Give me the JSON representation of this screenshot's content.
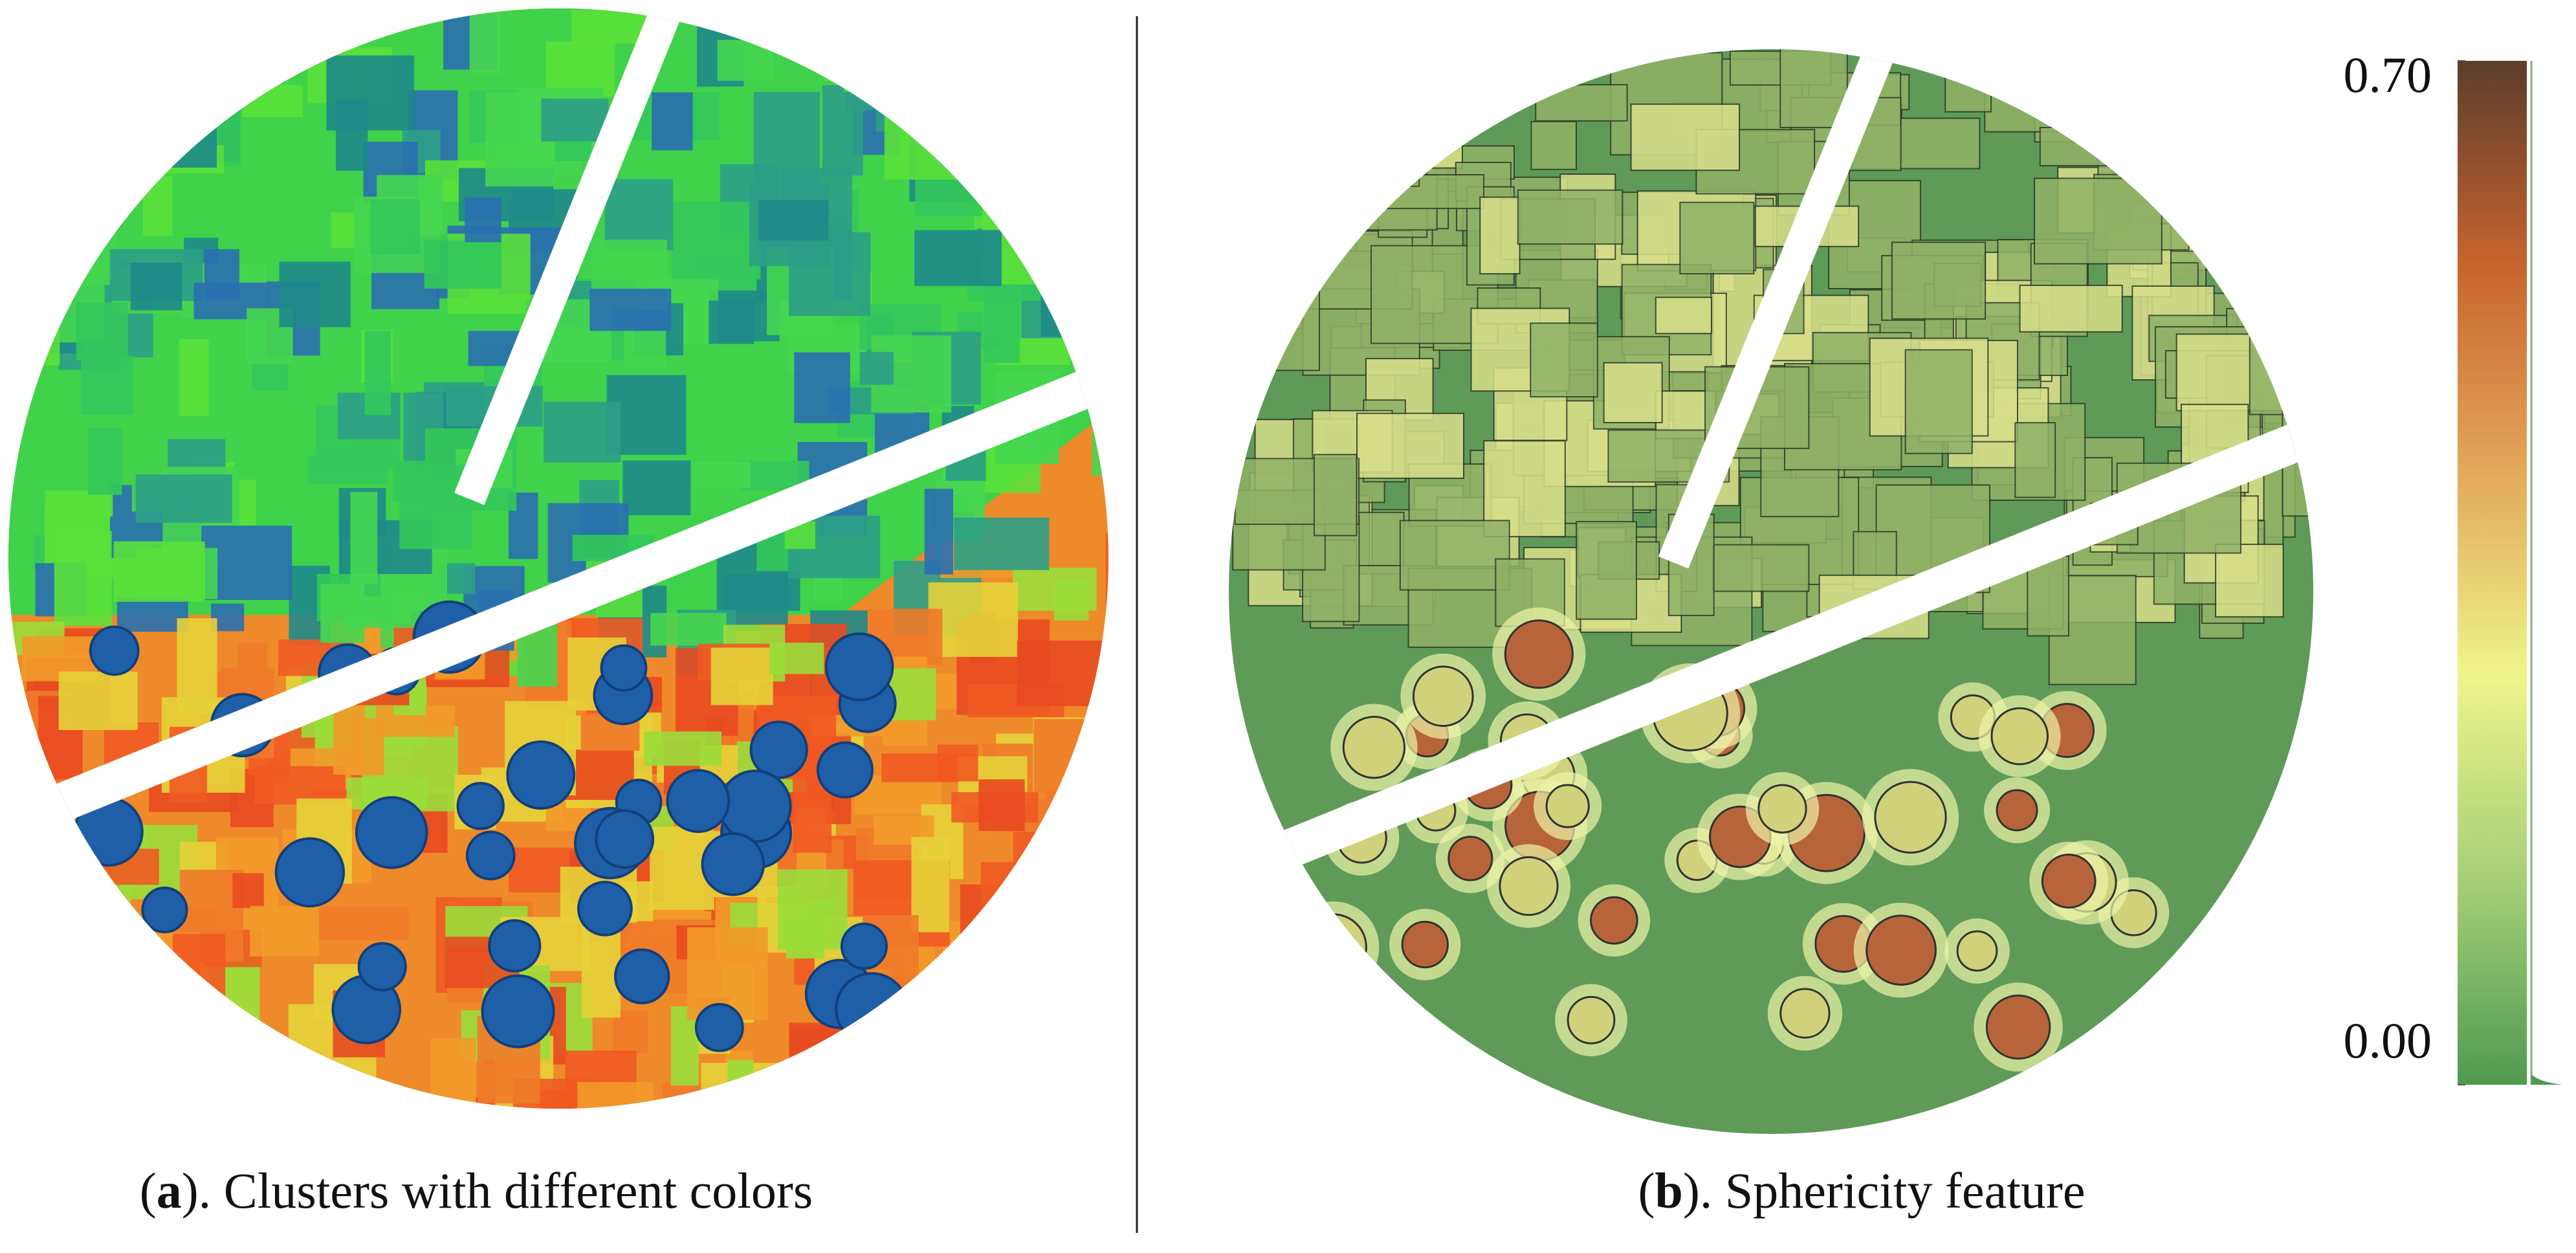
{
  "panels": [
    {
      "prefix": "(",
      "letter": "a",
      "text": "). Clusters with different colors"
    },
    {
      "prefix": "(",
      "letter": "b",
      "text": "). Sphericity feature"
    }
  ],
  "colorbar": {
    "ticks": [
      {
        "value": 0,
        "label": "0.00"
      },
      {
        "value": 0.7,
        "label": "0.70"
      }
    ],
    "colors": [
      "#4f9a50",
      "#a6cf78",
      "#eef58a",
      "#e3a85a",
      "#c8642e",
      "#5b3d2c"
    ]
  }
}
